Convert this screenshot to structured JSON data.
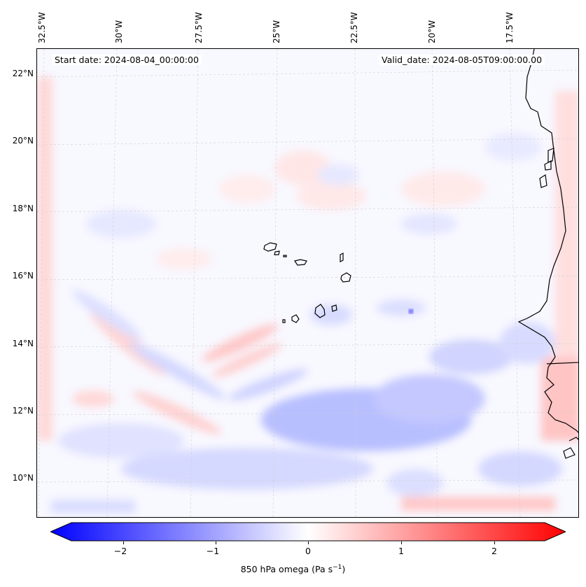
{
  "map": {
    "start_date": "Start date: 2024-08-04_00:00:00",
    "valid_date": "Valid_date: 2024-08-05T09:00:00.00",
    "lon_labels": [
      "32.5°W",
      "30°W",
      "27.5°W",
      "25°W",
      "22.5°W",
      "20°W",
      "17.5°W"
    ],
    "lat_labels": [
      "22°N",
      "20°N",
      "18°N",
      "16°N",
      "14°N",
      "12°N",
      "10°N"
    ],
    "field": "850 hPa omega"
  },
  "colorbar": {
    "ticks": [
      "−2",
      "−1",
      "0",
      "1",
      "2"
    ],
    "label_main": "850 hPa omega (Pa s",
    "label_sup": "−1",
    "label_close": ")",
    "min_color": "#0000ff",
    "mid_color": "#ffffff",
    "max_color": "#ff0000"
  }
}
